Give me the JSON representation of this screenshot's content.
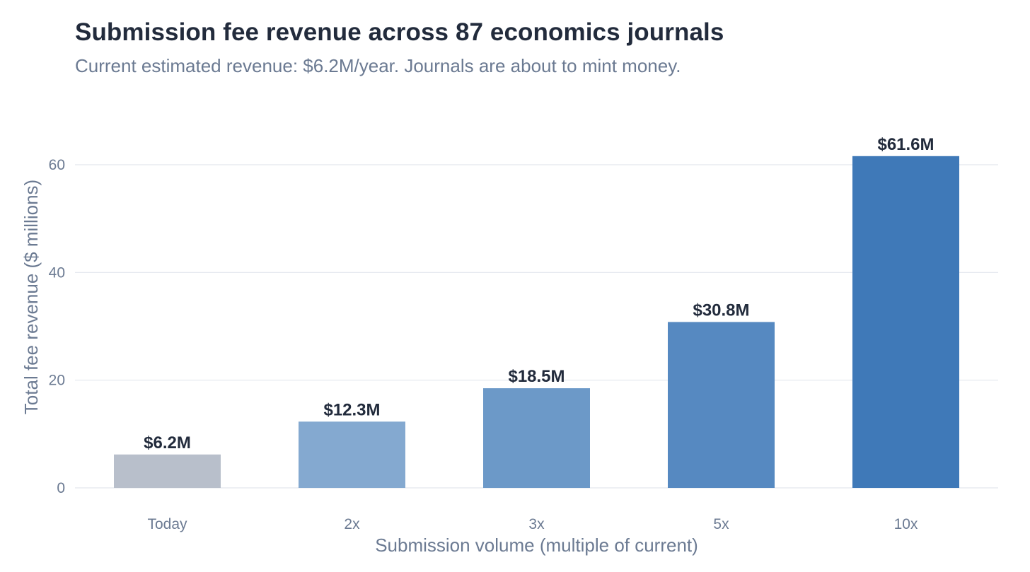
{
  "header": {
    "title": "Submission fee revenue across 87 economics journals",
    "subtitle": "Current estimated revenue: $6.2M/year. Journals are about to mint money."
  },
  "chart_data": {
    "type": "bar",
    "title": "Submission fee revenue across 87 economics journals",
    "subtitle": "Current estimated revenue: $6.2M/year. Journals are about to mint money.",
    "xlabel": "Submission volume (multiple of current)",
    "ylabel": "Total fee revenue ($ millions)",
    "categories": [
      "Today",
      "2x",
      "3x",
      "5x",
      "10x"
    ],
    "values": [
      6.2,
      12.3,
      18.5,
      30.8,
      61.6
    ],
    "data_labels": [
      "$6.2M",
      "$12.3M",
      "$18.5M",
      "$30.8M",
      "$61.6M"
    ],
    "bar_colors": [
      "#b8bfcb",
      "#84a9d0",
      "#6c99c8",
      "#5689c1",
      "#3f79b8"
    ],
    "yticks": [
      0,
      20,
      40,
      60
    ],
    "ylim": [
      0,
      65
    ],
    "grid": true,
    "legend": "none"
  }
}
